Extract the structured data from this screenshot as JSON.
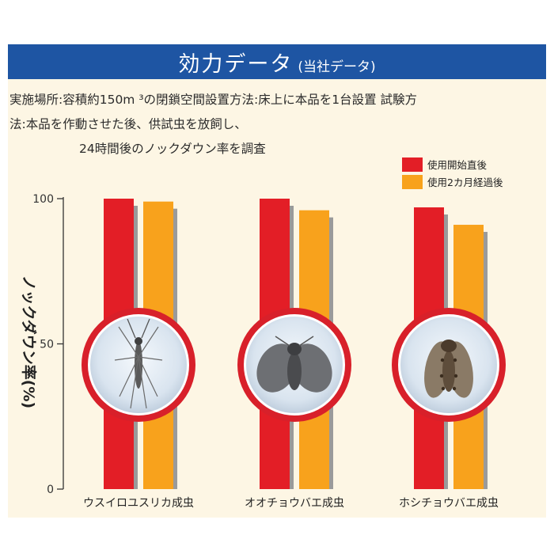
{
  "header": {
    "title": "効力データ",
    "subtitle": "(当社データ)"
  },
  "description": {
    "line1": "実施場所:容積約150m ³の閉鎖空間設置方法:床上に本品を1台設置 試験方",
    "line2": "法:本品を作動させた後、供試虫を放飼し、",
    "line3": "24時間後のノックダウン率を調査"
  },
  "colors": {
    "header_bg": "#1e55a3",
    "panel_bg": "#fdf6e4",
    "series_initial": "#e31e26",
    "series_2months": "#f8a21c",
    "bar_shadow": "#9a9a9a",
    "circle_border": "#d8202a"
  },
  "icons": [
    "mosquito-midge-photo",
    "drain-fly-photo",
    "spotted-drain-fly-photo"
  ],
  "chart_data": {
    "type": "bar",
    "categories": [
      "ウスイロユスリカ成虫",
      "オオチョウバエ成虫",
      "ホシチョウバエ成虫"
    ],
    "series": [
      {
        "name": "使用開始直後",
        "values": [
          100,
          100,
          97
        ]
      },
      {
        "name": "使用2カ月経過後",
        "values": [
          99,
          96,
          91
        ]
      }
    ],
    "ylabel": "ノックダウン率(%)",
    "yticks": [
      0,
      50,
      100
    ],
    "ylim": [
      0,
      100
    ],
    "legend_position": "top-right",
    "grid": false
  }
}
